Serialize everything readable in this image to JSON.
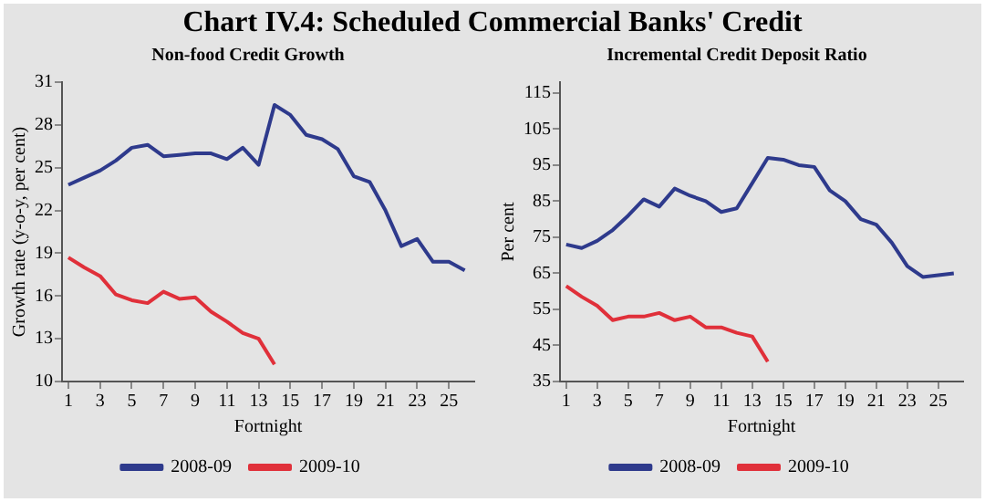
{
  "chart_data": [
    {
      "type": "line",
      "title": "Chart IV.4: Scheduled Commercial Banks' Credit",
      "subtitle": "Non-food Credit Growth",
      "xlabel": "Fortnight",
      "ylabel": "Growth rate (y-o-y, per cent)",
      "x": [
        1,
        2,
        3,
        4,
        5,
        6,
        7,
        8,
        9,
        10,
        11,
        12,
        13,
        14,
        15,
        16,
        17,
        18,
        19,
        20,
        21,
        22,
        23,
        24,
        25,
        26
      ],
      "series": [
        {
          "name": "2008-09",
          "color": "#2e3a8c",
          "values": [
            23.8,
            24.3,
            24.8,
            25.5,
            26.4,
            26.6,
            25.8,
            25.9,
            26.0,
            26.0,
            25.6,
            26.4,
            25.2,
            29.4,
            28.7,
            27.3,
            27.0,
            26.3,
            24.4,
            24.0,
            22.0,
            19.5,
            20.0,
            18.4,
            18.4,
            17.8
          ]
        },
        {
          "name": "2009-10",
          "color": "#e0303a",
          "values": [
            18.7,
            18.0,
            17.4,
            16.1,
            15.7,
            15.5,
            16.3,
            15.8,
            15.9,
            14.9,
            14.2,
            13.4,
            13.0,
            11.2,
            null,
            null,
            null,
            null,
            null,
            null,
            null,
            null,
            null,
            null,
            null,
            null
          ]
        }
      ],
      "xlim": [
        0.6,
        26.6
      ],
      "xticks": [
        1,
        3,
        5,
        7,
        9,
        11,
        13,
        15,
        17,
        19,
        21,
        23,
        25
      ],
      "ylim": [
        10,
        31
      ],
      "yticks": [
        10,
        13,
        16,
        19,
        22,
        25,
        28,
        31
      ],
      "grid": false,
      "legend": "bottom",
      "marker": "none",
      "line_style": "solid"
    },
    {
      "type": "line",
      "subtitle": "Incremental Credit Deposit Ratio",
      "xlabel": "Fortnight",
      "ylabel": "Per cent",
      "x": [
        1,
        2,
        3,
        4,
        5,
        6,
        7,
        8,
        9,
        10,
        11,
        12,
        13,
        14,
        15,
        16,
        17,
        18,
        19,
        20,
        21,
        22,
        23,
        24,
        25,
        26
      ],
      "series": [
        {
          "name": "2008-09",
          "color": "#2e3a8c",
          "values": [
            73,
            72,
            74,
            77,
            81,
            85.5,
            83.5,
            88.5,
            86.5,
            85,
            82,
            83,
            90,
            97,
            96.5,
            95,
            94.5,
            88,
            85,
            80,
            78.5,
            73.5,
            67,
            64,
            64.5,
            65
          ]
        },
        {
          "name": "2009-10",
          "color": "#e0303a",
          "values": [
            61.5,
            58.5,
            56,
            52,
            53,
            53,
            54,
            52,
            53,
            50,
            50,
            48.5,
            47.5,
            40.5,
            null,
            null,
            null,
            null,
            null,
            null,
            null,
            null,
            null,
            null,
            null,
            null
          ]
        }
      ],
      "xlim": [
        0.6,
        26.6
      ],
      "xticks": [
        1,
        3,
        5,
        7,
        9,
        11,
        13,
        15,
        17,
        19,
        21,
        23,
        25
      ],
      "ylim": [
        35,
        118
      ],
      "yticks": [
        35,
        45,
        55,
        65,
        75,
        85,
        95,
        105,
        115
      ],
      "grid": false,
      "legend": "bottom",
      "marker": "none",
      "line_style": "solid"
    }
  ]
}
